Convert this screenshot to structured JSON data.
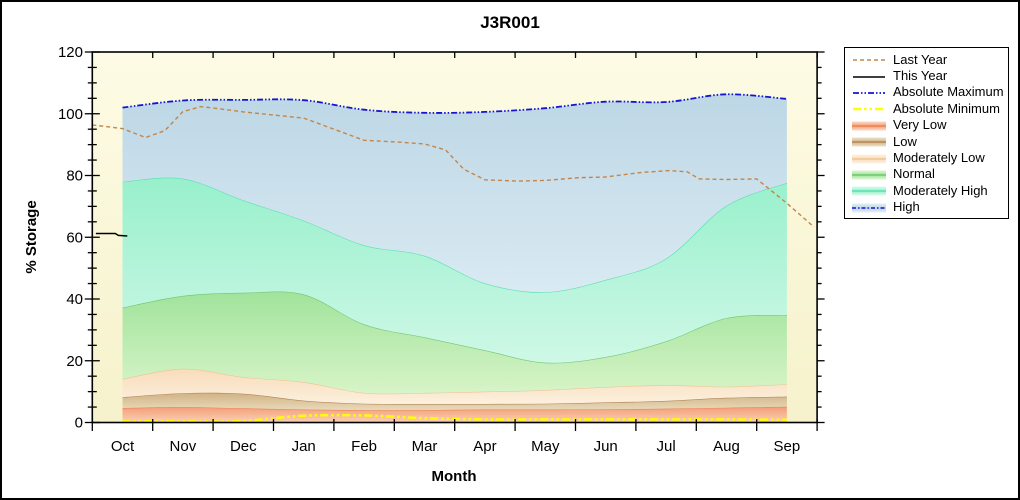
{
  "canvas": {
    "background": "#ffffff",
    "frame_color": "#000000"
  },
  "chart_data": {
    "type": "area",
    "title": "J3R001",
    "xlabel": "Month",
    "ylabel": "% Storage",
    "ylim": [
      0,
      120
    ],
    "yticks": [
      0,
      20,
      40,
      60,
      80,
      100,
      120
    ],
    "ytick_minor_step": 5,
    "grid": "off",
    "legend_position": "right",
    "plot_bg_top": "#fdfbe4",
    "plot_bg_bottom": "#f6f2cc",
    "categories": [
      "Oct",
      "Nov",
      "Dec",
      "Jan",
      "Feb",
      "Mar",
      "Apr",
      "May",
      "Jun",
      "Jul",
      "Aug",
      "Sep"
    ],
    "bands": [
      {
        "name": "Very Low",
        "top": [
          4.7,
          5,
          4.6,
          4.2,
          4,
          4,
          4.2,
          4.2,
          4.3,
          4.5,
          4.8,
          5.1
        ],
        "fill_top": "#f49e76",
        "fill_bottom": "#f9d0b8",
        "edge": "#ed8355"
      },
      {
        "name": "Low",
        "top": [
          8.2,
          9.5,
          9.3,
          7.1,
          6.1,
          6,
          6,
          6.1,
          6.5,
          7,
          8,
          8.4
        ],
        "fill_top": "#d1b283",
        "fill_bottom": "#e9dabb",
        "edge": "#b3885a"
      },
      {
        "name": "Moderately Low",
        "top": [
          14.1,
          17.4,
          14.7,
          13.1,
          9.6,
          9.6,
          10,
          10.5,
          11.5,
          12.1,
          11.6,
          12.4
        ],
        "fill_top": "#f8dcbb",
        "fill_bottom": "#fcf0dd",
        "edge": "#f0c493"
      },
      {
        "name": "Normal",
        "top": [
          37.2,
          41,
          42,
          41.5,
          31.8,
          27.6,
          23.4,
          19.4,
          21.2,
          26.3,
          33.8,
          34.8
        ],
        "fill_top": "#a0e39b",
        "fill_bottom": "#d8f4c8",
        "edge": "#70c870"
      },
      {
        "name": "Moderately High",
        "top": [
          78,
          79,
          72,
          65.4,
          57.4,
          54,
          45.1,
          42.2,
          46.2,
          53.1,
          70.2,
          77.6
        ],
        "fill_top": "#98f0cc",
        "fill_bottom": "#cff8e7",
        "edge": "#5ce0b4"
      },
      {
        "name": "High",
        "top": [
          102,
          104.3,
          104.5,
          104.4,
          101.3,
          100.3,
          100.6,
          101.8,
          103.9,
          103.8,
          106.3,
          104.8
        ],
        "fill_top": "#bdd7e6",
        "fill_bottom": "#d9eaf2",
        "edge": null
      }
    ],
    "lines": [
      {
        "name": "Absolute Maximum",
        "color": "#1414d2",
        "dash": "6 2 1.5 2 1.5 2",
        "width": 1.8,
        "smooth": true,
        "values": [
          102,
          104.3,
          104.5,
          104.4,
          101.3,
          100.3,
          100.6,
          101.8,
          103.9,
          103.8,
          106.3,
          104.8
        ]
      },
      {
        "name": "Absolute Minimum",
        "color": "#ffff00",
        "dash": "8 3 2.5 3 2.5 3",
        "width": 2.5,
        "smooth": true,
        "values": [
          0.4,
          0.4,
          0.5,
          2.2,
          2.3,
          1.4,
          1,
          1,
          1,
          1,
          1,
          0.9
        ]
      },
      {
        "name": "Last Year",
        "color": "#c4854a",
        "dash": "4 3",
        "width": 1.4,
        "smooth": false,
        "points": [
          [
            -0.5,
            96.4
          ],
          [
            0,
            95.2
          ],
          [
            0.38,
            92.3
          ],
          [
            0.7,
            94.5
          ],
          [
            1,
            100.7
          ],
          [
            1.3,
            102.3
          ],
          [
            1.6,
            101.6
          ],
          [
            2,
            100.6
          ],
          [
            3,
            98.6
          ],
          [
            4,
            91.4
          ],
          [
            4.6,
            90.8
          ],
          [
            5,
            90.2
          ],
          [
            5.35,
            88.3
          ],
          [
            5.65,
            82
          ],
          [
            6,
            78.6
          ],
          [
            6.55,
            78.2
          ],
          [
            7,
            78.4
          ],
          [
            7.55,
            79.3
          ],
          [
            8,
            79.5
          ],
          [
            8.6,
            81
          ],
          [
            9.05,
            81.6
          ],
          [
            9.35,
            81.2
          ],
          [
            9.55,
            78.9
          ],
          [
            10,
            78.7
          ],
          [
            10.5,
            78.9
          ],
          [
            11,
            71
          ],
          [
            11.45,
            63.3
          ]
        ]
      },
      {
        "name": "This Year",
        "color": "#000000",
        "dash": "",
        "width": 1.5,
        "smooth": false,
        "points": [
          [
            -0.44,
            61.2
          ],
          [
            -0.12,
            61.2
          ],
          [
            -0.07,
            60.6
          ],
          [
            0.08,
            60.4
          ]
        ]
      }
    ]
  },
  "legend": {
    "items": [
      {
        "label": "Last Year",
        "type": "line",
        "color": "#c4854a",
        "dash": "4 3",
        "width": 1.4
      },
      {
        "label": "This Year",
        "type": "line",
        "color": "#000000",
        "dash": "",
        "width": 1.4
      },
      {
        "label": "Absolute Maximum",
        "type": "line",
        "color": "#1414d2",
        "dash": "6 2 1.5 2 1.5 2",
        "width": 1.8
      },
      {
        "label": "Absolute Minimum",
        "type": "line",
        "color": "#ffff00",
        "dash": "8 3 2.5 3 2.5 3",
        "width": 2.6
      },
      {
        "label": "Very Low",
        "type": "band",
        "fill": "#f49e76",
        "light": "#fbdccb",
        "edge": "#ed8355"
      },
      {
        "label": "Low",
        "type": "band",
        "fill": "#d1b283",
        "light": "#eee3cc",
        "edge": "#b3885a"
      },
      {
        "label": "Moderately Low",
        "type": "band",
        "fill": "#f8dcbb",
        "light": "#fdf3e4",
        "edge": "#f0c493"
      },
      {
        "label": "Normal",
        "type": "band",
        "fill": "#a0e39b",
        "light": "#e0f6d4",
        "edge": "#70c870"
      },
      {
        "label": "Moderately High",
        "type": "band",
        "fill": "#98f0cc",
        "light": "#dcfaee",
        "edge": "#5ce0b4"
      },
      {
        "label": "High",
        "type": "band",
        "fill": "#bdd7e6",
        "light": "#e4eff5",
        "edge": "#1414d2",
        "edge_dash": "4 2 1.5 2"
      }
    ]
  }
}
